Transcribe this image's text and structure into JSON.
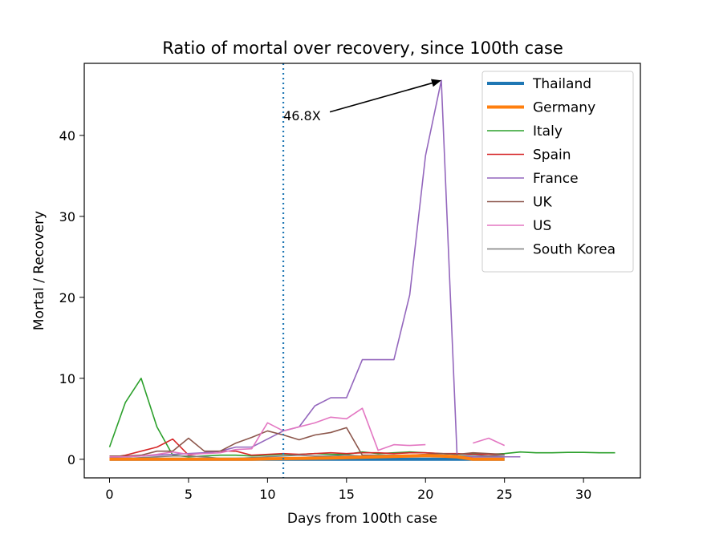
{
  "chart_data": {
    "type": "line",
    "title": "Ratio of mortal over recovery, since 100th case",
    "xlabel": "Days from 100th case",
    "ylabel": "Mortal / Recovery",
    "xlim": [
      -1.6,
      33.6
    ],
    "ylim": [
      -2.3,
      48.9
    ],
    "xticks": [
      0,
      5,
      10,
      15,
      20,
      25,
      30
    ],
    "yticks": [
      0,
      10,
      20,
      30,
      40
    ],
    "grid": false,
    "legend_position": "top-right",
    "vline": {
      "x": 11,
      "color": "#1f77b4",
      "style": "dotted"
    },
    "annotation": {
      "text": "46.8X",
      "target": [
        21,
        46.8
      ],
      "text_pos": [
        11,
        42.3
      ]
    },
    "series": [
      {
        "name": "Thailand",
        "color": "#1f77b4",
        "width": 4,
        "x": [
          0,
          1,
          2,
          3,
          4,
          5,
          6,
          7,
          8,
          9,
          10,
          11,
          12,
          13,
          14,
          15,
          16,
          17,
          18,
          19,
          20,
          21,
          22,
          23,
          24,
          25
        ],
        "y": [
          0,
          0,
          0,
          0,
          0,
          0,
          0,
          0,
          0,
          0,
          0,
          0,
          0,
          0,
          0,
          0,
          0,
          0,
          0,
          0,
          0,
          0,
          0,
          0,
          0,
          0
        ]
      },
      {
        "name": "Germany",
        "color": "#ff7f0e",
        "width": 4,
        "x": [
          0,
          1,
          2,
          3,
          4,
          5,
          6,
          7,
          8,
          9,
          10,
          11,
          12,
          13,
          14,
          15,
          16,
          17,
          18,
          19,
          20,
          21,
          22,
          23,
          24,
          25
        ],
        "y": [
          0,
          0,
          0,
          0,
          0,
          0,
          0,
          0,
          0,
          0,
          0.05,
          0.08,
          0.1,
          0.12,
          0.15,
          0.2,
          0.25,
          0.3,
          0.35,
          0.4,
          0.45,
          0.4,
          0.3,
          0,
          0,
          0
        ]
      },
      {
        "name": "Italy",
        "color": "#2ca02c",
        "width": 1.6,
        "x": [
          0,
          1,
          2,
          3,
          4,
          5,
          6,
          7,
          8,
          9,
          10,
          11,
          12,
          13,
          14,
          15,
          16,
          17,
          18,
          19,
          20,
          21,
          22,
          23,
          24,
          25,
          26,
          27,
          28,
          29,
          30,
          31,
          32
        ],
        "y": [
          1.5,
          7,
          10,
          4,
          0.5,
          0.3,
          0.4,
          0.5,
          0.5,
          0.4,
          0.5,
          0.6,
          0.6,
          0.7,
          0.6,
          0.6,
          0.9,
          0.7,
          0.8,
          0.9,
          0.8,
          0.7,
          0.6,
          0.7,
          0.6,
          0.7,
          0.9,
          0.8,
          0.8,
          0.85,
          0.85,
          0.8,
          0.8
        ]
      },
      {
        "name": "Spain",
        "color": "#d62728",
        "width": 1.6,
        "x": [
          0,
          1,
          2,
          3,
          4,
          5,
          6,
          7,
          8,
          9,
          10,
          11,
          12,
          13,
          14,
          15,
          16,
          17,
          18,
          19,
          20,
          21,
          22,
          23,
          24,
          25
        ],
        "y": [
          0.2,
          0.5,
          1,
          1.5,
          2.5,
          0.5,
          0.8,
          1,
          1,
          0.5,
          0.6,
          0.7,
          0.6,
          0.7,
          0.8,
          0.7,
          0.8,
          0.8,
          0.7,
          0.8,
          0.8,
          0.7,
          0.7,
          0.6,
          0.6,
          0.5
        ]
      },
      {
        "name": "France",
        "color": "#9467bd",
        "width": 1.6,
        "x": [
          0,
          1,
          2,
          3,
          4,
          5,
          6,
          7,
          8,
          9,
          10,
          11,
          12,
          13,
          14,
          15,
          16,
          17,
          18,
          19,
          20,
          21,
          22,
          23,
          24,
          25,
          26
        ],
        "y": [
          0.2,
          0.3,
          0.4,
          0.5,
          0.6,
          0.7,
          0.8,
          1,
          1.5,
          1.5,
          2.5,
          3.5,
          4,
          6.6,
          7.6,
          7.6,
          12.3,
          12.3,
          12.3,
          20.3,
          37.5,
          46.8,
          0.3,
          0.3,
          0.3,
          0.3,
          0.3
        ]
      },
      {
        "name": "UK",
        "color": "#8c564b",
        "width": 1.6,
        "x": [
          0,
          1,
          2,
          3,
          4,
          5,
          6,
          7,
          8,
          9,
          10,
          11,
          12,
          13,
          14,
          15,
          16,
          17,
          18,
          19,
          20,
          21,
          22,
          23,
          24,
          25
        ],
        "y": [
          0.4,
          0.4,
          0.5,
          1,
          1,
          2.6,
          1,
          1,
          2,
          2.7,
          3.5,
          3,
          2.4,
          3,
          3.3,
          3.9,
          0.5,
          0.5,
          0.5,
          0.5,
          0.6,
          0.7,
          0.6,
          0.8,
          0.7,
          0.6
        ]
      },
      {
        "name": "US",
        "color": "#e377c2",
        "width": 1.6,
        "x": [
          0,
          1,
          2,
          3,
          4,
          5,
          6,
          7,
          8,
          9,
          10,
          11,
          12,
          13,
          14,
          15,
          16,
          17,
          18,
          19,
          20,
          null,
          23,
          24,
          25
        ],
        "y": [
          0.3,
          0.3,
          0.4,
          0.6,
          0.9,
          0.6,
          0.7,
          0.8,
          1.2,
          1.3,
          4.5,
          3.5,
          4,
          4.5,
          5.2,
          5,
          6.3,
          1.1,
          1.8,
          1.7,
          1.8,
          null,
          2,
          2.6,
          1.7
        ]
      },
      {
        "name": "South Korea",
        "color": "#7f7f7f",
        "width": 1.6,
        "x": [
          0,
          1,
          2,
          3,
          4,
          5,
          6,
          7,
          8,
          9,
          10,
          11,
          12,
          13,
          14,
          15,
          16,
          17,
          18,
          19,
          20,
          21,
          22,
          23,
          24,
          25
        ],
        "y": [
          0,
          0.1,
          0.2,
          0.3,
          0.4,
          0.4,
          0.3,
          0.1,
          0.1,
          0.2,
          0.3,
          0.4,
          0.5,
          0.4,
          0.4,
          0.5,
          0.4,
          0.5,
          0.5,
          0.4,
          0.5,
          0.5,
          0.4,
          0.5,
          0.4,
          0.5
        ]
      }
    ]
  }
}
